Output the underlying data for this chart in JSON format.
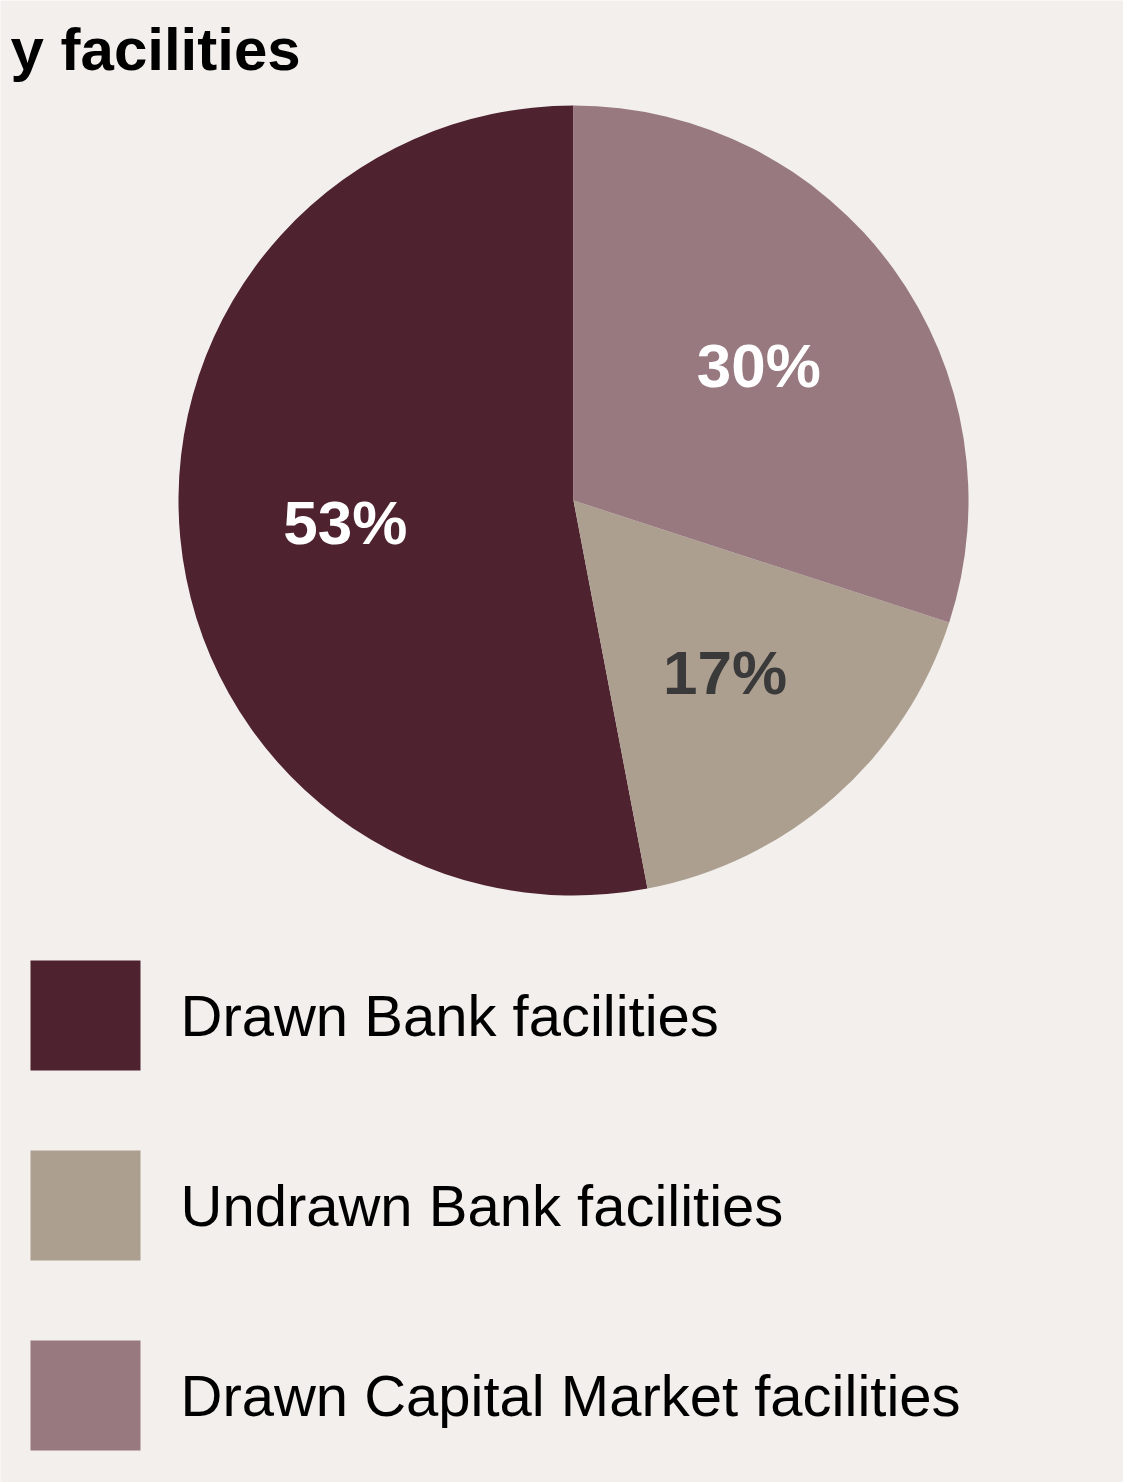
{
  "chart_data": {
    "type": "pie",
    "title": "y facilities",
    "categories": [
      "Drawn Bank facilities",
      "Undrawn Bank facilities",
      "Drawn Capital Market facilities"
    ],
    "values": [
      53,
      17,
      30
    ],
    "colors": [
      "#4f222f",
      "#ac9f90",
      "#97797f"
    ],
    "value_labels": [
      "53%",
      "17%",
      "30%"
    ],
    "legend": "bottom"
  }
}
